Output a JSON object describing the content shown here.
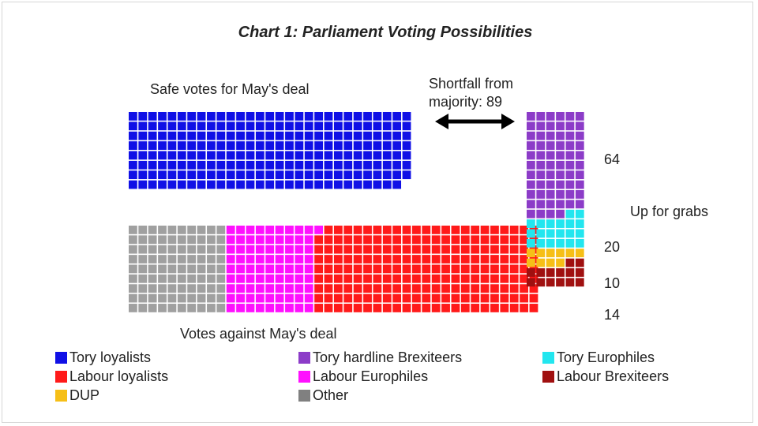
{
  "chart_data": {
    "type": "waffle",
    "title": "Chart 1: Parliament Voting Possibilities",
    "safe_label": "Safe votes for May's deal",
    "against_label": "Votes against May's deal",
    "shortfall_label_line1": "Shortfall from",
    "shortfall_label_line2": "majority: 89",
    "up_for_grabs_label": "Up for grabs",
    "groups": {
      "safe": [
        {
          "name": "Tory loyalists",
          "color": "#1010e6",
          "count": 231
        }
      ],
      "against": [
        {
          "name": "Other",
          "color": "#a0a0a0",
          "count": 90
        },
        {
          "name": "Labour Europhiles",
          "color": "#ff10ff",
          "count": 82
        },
        {
          "name": "Labour loyalists",
          "color": "#ff1a1a",
          "count": 206
        }
      ],
      "up_for_grabs": [
        {
          "name": "Tory hardline Brexiteers",
          "color": "#8c3cc8",
          "count": 64,
          "label": "64"
        },
        {
          "name": "Tory Europhiles",
          "color": "#22e6ef",
          "count": 20,
          "label": "20"
        },
        {
          "name": "DUP",
          "color": "#f6bf17",
          "count": 10,
          "label": "10"
        },
        {
          "name": "Labour Brexiteers",
          "color": "#a01010",
          "count": 14,
          "label": "14"
        }
      ]
    }
  },
  "legend": [
    {
      "label": "Tory loyalists",
      "color": "#1010e6"
    },
    {
      "label": "Tory hardline Brexiteers",
      "color": "#8c3cc8"
    },
    {
      "label": "Tory Europhiles",
      "color": "#22e6ef"
    },
    {
      "label": "Labour loyalists",
      "color": "#ff1a1a"
    },
    {
      "label": "Labour Europhiles",
      "color": "#ff10ff"
    },
    {
      "label": "Labour Brexiteers",
      "color": "#a01010"
    },
    {
      "label": "DUP",
      "color": "#f6bf17"
    },
    {
      "label": "Other",
      "color": "#808080"
    }
  ]
}
